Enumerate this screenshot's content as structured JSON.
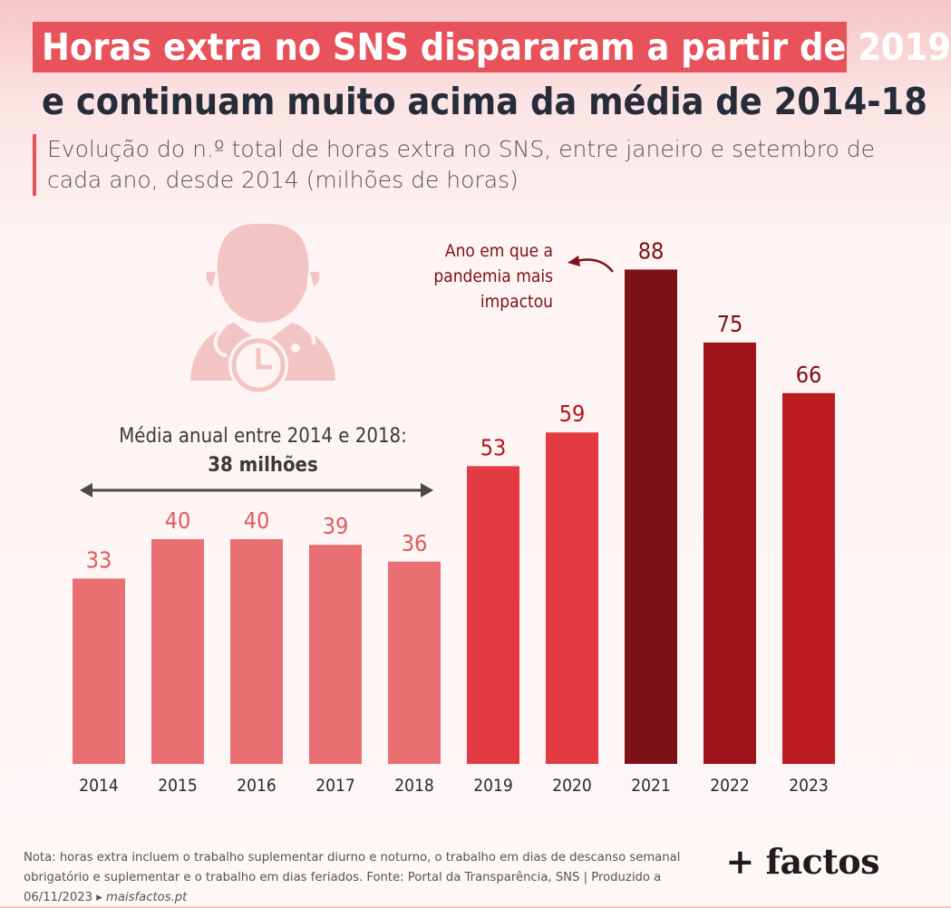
{
  "header": {
    "title_line1": "Horas extra no SNS dispararam a partir de 2019",
    "title_line2": "e continuam muito acima da média de 2014-18",
    "subtitle": "Evolução do n.º total de horas extra no SNS, entre janeiro e setembro de cada ano, desde 2014 (milhões de horas)"
  },
  "annotations": {
    "average_label": "Média anual entre 2014 e 2018:",
    "average_value": "38 milhões",
    "pandemic_line1": "Ano em que a",
    "pandemic_line2": "pandemia mais",
    "pandemic_line3": "impactou"
  },
  "footer": {
    "note_text": "Nota: horas extra incluem o trabalho suplementar diurno e noturno, o trabalho em dias de descanso semanal obrigatório e suplementar e o trabalho em dias feriados. Fonte: Portal da Transparência, SNS | Produzido a 06/11/2023 ▸",
    "note_site": "maisfactos.pt",
    "logo": "+ factos"
  },
  "colors": {
    "baseline_bar": "#ea6f72",
    "baseline_label": "#e05a60",
    "recent_bar": "#e43a42",
    "peak_bar": "#7d1118",
    "post_peak_2022": "#9e141a",
    "post_peak_2023": "#bb1c22",
    "title_band": "#e8525a",
    "icon": "#f3c4c4"
  },
  "icon": "doctor-clock-icon",
  "chart_data": {
    "type": "bar",
    "categories": [
      "2014",
      "2015",
      "2016",
      "2017",
      "2018",
      "2019",
      "2020",
      "2021",
      "2022",
      "2023"
    ],
    "values": [
      33,
      40,
      40,
      39,
      36,
      53,
      59,
      88,
      75,
      66
    ],
    "ylim": [
      0,
      100
    ],
    "average_2014_2018": 38,
    "grid": false,
    "legend": "none"
  }
}
